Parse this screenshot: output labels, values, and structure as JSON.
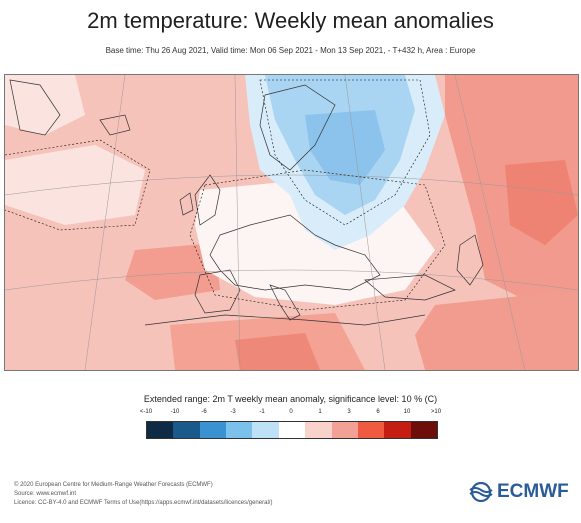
{
  "header": {
    "title": "2m temperature: Weekly mean anomalies",
    "subtitle": "Base time: Thu 26 Aug 2021, Valid time: Mon 06 Sep 2021 - Mon 13 Sep 2021, - T+432 h, Area : Europe"
  },
  "map": {
    "region": "Europe",
    "warm_color": "#f4a79c",
    "cold_color": "#a9d4f2"
  },
  "legend": {
    "title": "Extended range: 2m T weekly mean anomaly, significance level: 10 % (C)",
    "ticks": [
      "<-10",
      "-10",
      "-6",
      "-3",
      "-1",
      "0",
      "1",
      "3",
      "6",
      "10",
      ">10"
    ],
    "colors": [
      "#0f2a45",
      "#1a5a8a",
      "#3a93d0",
      "#7cc0ec",
      "#bfe1f7",
      "#ffffff",
      "#f9d2cb",
      "#f3a096",
      "#ef5a40",
      "#c41d12",
      "#6e0e0a"
    ]
  },
  "footer": {
    "line1": "© 2020 European Centre for Medium-Range Weather Forecasts (ECMWF)",
    "line2": "Source: www.ecmwf.int",
    "line3": "Licence: CC-BY-4.0 and ECMWF Terms of Use(https://apps.ecmwf.int/datasets/licences/general/)",
    "logo_text": "ECMWF"
  }
}
